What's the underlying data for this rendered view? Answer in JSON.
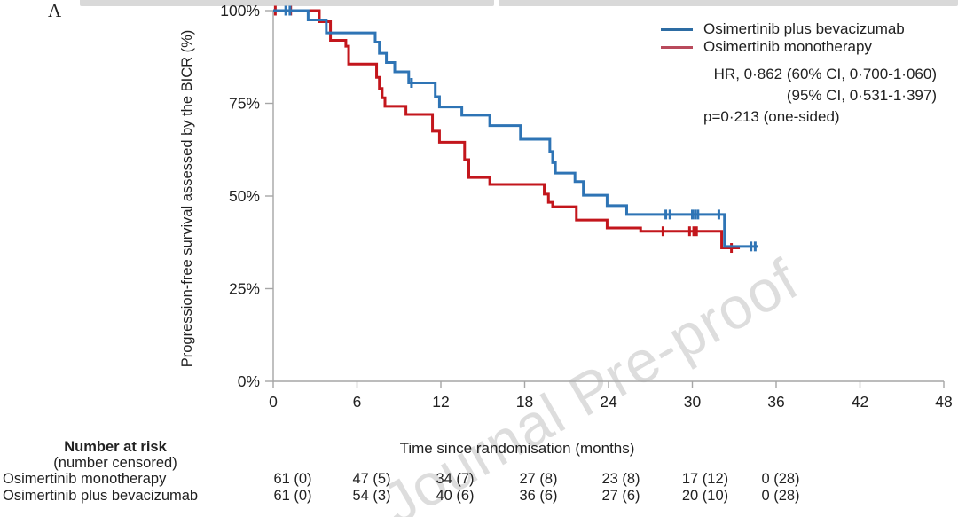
{
  "figure": {
    "panel_label": "A"
  },
  "watermark": {
    "text": "Journal Pre-proof"
  },
  "stats": {
    "line1": "HR, 0·862 (60% CI, 0·700-1·060)",
    "line2": "(95% CI, 0·531-1·397)",
    "line3": "p=0·213 (one-sided)"
  },
  "chart_data": {
    "type": "line",
    "subtype": "kaplan-meier-step",
    "title": "",
    "xlabel": "Time since randomisation (months)",
    "ylabel": "Progression-free survival assessed by the BICR (%)",
    "xlim": [
      0,
      48
    ],
    "ylim": [
      0,
      100
    ],
    "x_ticks": [
      0,
      6,
      12,
      18,
      24,
      30,
      36,
      42,
      48
    ],
    "y_ticks": [
      "0%",
      "25%",
      "50%",
      "75%",
      "100%"
    ],
    "y_tick_values": [
      0,
      25,
      50,
      75,
      100
    ],
    "grid": false,
    "legend_position": "top-right",
    "annotations": [
      "HR, 0·862 (60% CI, 0·700-1·060)",
      "(95% CI, 0·531-1·397)",
      "p=0·213 (one-sided)"
    ],
    "series": [
      {
        "name": "Osimertinib plus bevacizumab",
        "color": "#2e74b5",
        "legend_color": "#2d6ca3",
        "end_month": 34.7,
        "steps": [
          [
            0,
            100
          ],
          [
            2.5,
            97.5
          ],
          [
            3.8,
            94.0
          ],
          [
            7.3,
            91.5
          ],
          [
            7.6,
            88.5
          ],
          [
            8.1,
            86.0
          ],
          [
            8.7,
            83.5
          ],
          [
            9.7,
            80.5
          ],
          [
            11.6,
            76.8
          ],
          [
            11.9,
            74.0
          ],
          [
            13.5,
            71.8
          ],
          [
            15.5,
            69.0
          ],
          [
            17.7,
            65.3
          ],
          [
            19.8,
            62.0
          ],
          [
            20.0,
            59.0
          ],
          [
            20.2,
            56.2
          ],
          [
            21.6,
            53.9
          ],
          [
            22.2,
            50.2
          ],
          [
            23.9,
            47.4
          ],
          [
            25.3,
            45.0
          ],
          [
            32.3,
            36.4
          ]
        ],
        "censor_marks": [
          [
            0.9,
            100
          ],
          [
            1.2,
            100
          ],
          [
            9.9,
            80.5
          ],
          [
            28.1,
            45.0
          ],
          [
            28.4,
            45.0
          ],
          [
            30.0,
            45.0
          ],
          [
            30.2,
            45.0
          ],
          [
            30.4,
            45.0
          ],
          [
            31.9,
            45.0
          ],
          [
            34.2,
            36.4
          ],
          [
            34.5,
            36.4
          ]
        ]
      },
      {
        "name": "Osimertinib monotherapy",
        "color": "#c3161c",
        "legend_color": "#b94a5c",
        "end_month": 33.4,
        "steps": [
          [
            0,
            100
          ],
          [
            3.3,
            97.0
          ],
          [
            4.1,
            92.0
          ],
          [
            5.2,
            90.4
          ],
          [
            5.4,
            85.6
          ],
          [
            7.4,
            82.0
          ],
          [
            7.6,
            79.0
          ],
          [
            7.8,
            76.5
          ],
          [
            8.0,
            74.2
          ],
          [
            9.5,
            72.0
          ],
          [
            11.4,
            67.5
          ],
          [
            11.9,
            64.5
          ],
          [
            13.7,
            59.8
          ],
          [
            14.0,
            55.0
          ],
          [
            15.5,
            53.1
          ],
          [
            19.4,
            50.5
          ],
          [
            19.7,
            48.3
          ],
          [
            20.0,
            47.1
          ],
          [
            21.7,
            43.5
          ],
          [
            23.9,
            41.4
          ],
          [
            26.3,
            40.5
          ],
          [
            32.1,
            36.0
          ]
        ],
        "censor_marks": [
          [
            0.15,
            100
          ],
          [
            1.25,
            100
          ],
          [
            27.9,
            40.5
          ],
          [
            29.8,
            40.5
          ],
          [
            30.1,
            40.5
          ],
          [
            30.3,
            40.5
          ],
          [
            32.8,
            36.0
          ]
        ]
      }
    ]
  },
  "risk_table": {
    "header": "Number at risk",
    "subheader": "(number censored)",
    "rows": [
      {
        "label": "Osimertinib monotherapy",
        "values": [
          "61 (0)",
          "47 (5)",
          "34 (7)",
          "27 (8)",
          "23 (8)",
          "17 (12)",
          "0 (28)"
        ]
      },
      {
        "label": "Osimertinib plus bevacizumab",
        "values": [
          "61 (0)",
          "54 (3)",
          "40 (6)",
          "36 (6)",
          "27 (6)",
          "20 (10)",
          "0 (28)"
        ]
      }
    ]
  }
}
